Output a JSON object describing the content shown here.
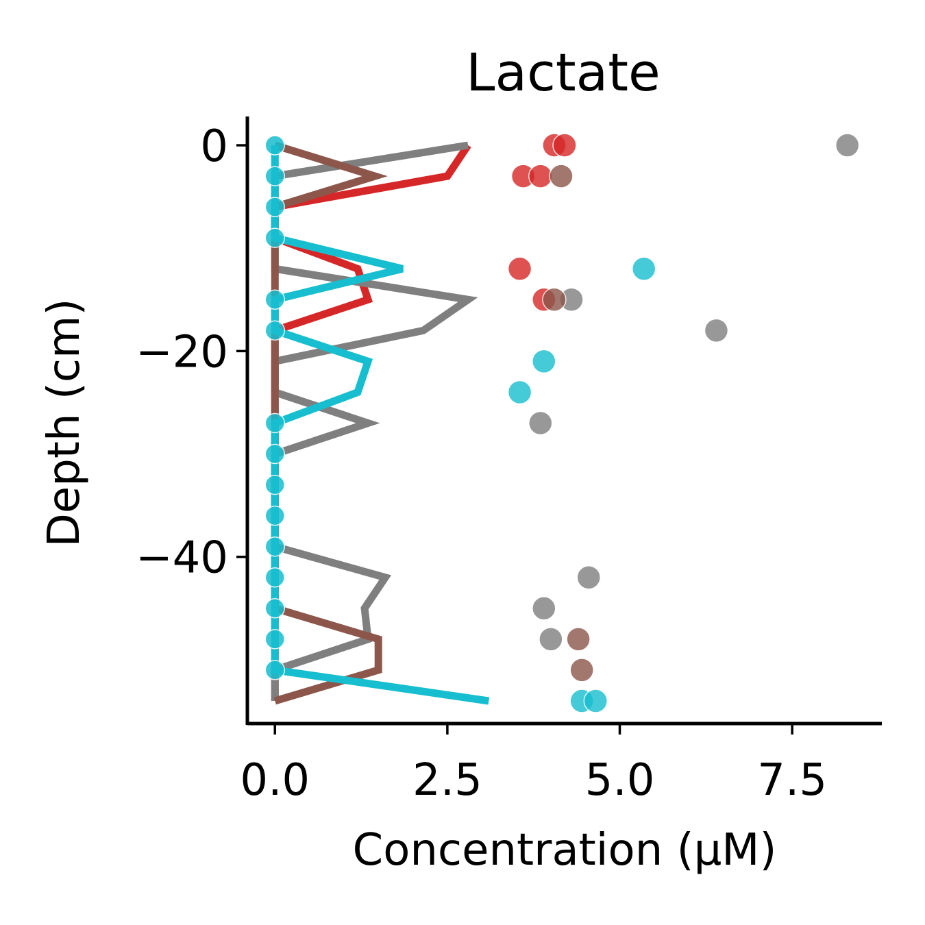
{
  "chart_data": {
    "type": "line",
    "title": "Lactate",
    "xlabel": "Concentration (μM)",
    "ylabel": "Depth (cm)",
    "xlim": [
      -0.4,
      8.8
    ],
    "ylim": [
      -56.2,
      2.8
    ],
    "xticks": [
      0.0,
      2.5,
      5.0,
      7.5
    ],
    "xtick_labels": [
      "0.0",
      "2.5",
      "5.0",
      "7.5"
    ],
    "yticks": [
      0,
      -20,
      -40
    ],
    "ytick_labels": [
      "0",
      "−20",
      "−40"
    ],
    "grid": false,
    "legend": "none",
    "depths": [
      0,
      -3,
      -6,
      -9,
      -12,
      -15,
      -18,
      -21,
      -24,
      -27,
      -30,
      -33,
      -36,
      -39,
      -42,
      -45,
      -48,
      -51,
      -54
    ],
    "series": [
      {
        "color": "#d62728",
        "line_x": [
          2.8,
          2.5,
          0.0,
          0.0,
          1.2,
          1.35,
          0.0,
          0.0,
          0.0,
          0.0,
          0.0,
          0.0,
          0.0,
          0.0,
          0.0,
          0.0,
          0.0,
          0.0,
          0.0
        ],
        "observations": [
          {
            "x": 4.05,
            "y": 0
          },
          {
            "x": 4.2,
            "y": 0
          },
          {
            "x": 3.6,
            "y": -3
          },
          {
            "x": 3.85,
            "y": -3
          },
          {
            "x": 3.55,
            "y": -12
          },
          {
            "x": 3.9,
            "y": -15
          }
        ]
      },
      {
        "color": "#7f7f7f",
        "line_x": [
          2.8,
          0.0,
          0.0,
          0.0,
          0.0,
          2.8,
          2.15,
          0.0,
          0.0,
          1.35,
          0.0,
          0.0,
          0.0,
          0.0,
          1.6,
          1.3,
          1.35,
          0.0,
          0.0
        ],
        "observations": [
          {
            "x": 8.3,
            "y": 0
          },
          {
            "x": 4.3,
            "y": -15
          },
          {
            "x": 6.4,
            "y": -18
          },
          {
            "x": 3.85,
            "y": -27
          },
          {
            "x": 4.55,
            "y": -42
          },
          {
            "x": 3.9,
            "y": -45
          },
          {
            "x": 4.0,
            "y": -48
          }
        ]
      },
      {
        "color": "#8c564b",
        "line_x": [
          0.0,
          1.45,
          0.0,
          0.0,
          0.0,
          0.0,
          0.0,
          0.0,
          0.0,
          0.0,
          0.0,
          0.0,
          0.0,
          0.0,
          0.0,
          0.0,
          1.5,
          1.5,
          0.0
        ],
        "observations": [
          {
            "x": 4.15,
            "y": -3
          },
          {
            "x": 4.05,
            "y": -15
          },
          {
            "x": 4.4,
            "y": -48
          },
          {
            "x": 4.45,
            "y": -51
          }
        ]
      },
      {
        "color": "#17becf",
        "line_x": [
          0.0,
          0.0,
          0.0,
          0.0,
          1.85,
          0.0,
          0.0,
          1.35,
          1.2,
          0.0,
          0.0,
          0.0,
          0.0,
          0.0,
          0.0,
          0.0,
          0.0,
          0.0,
          3.1
        ],
        "observations": [
          {
            "x": 5.35,
            "y": -12
          },
          {
            "x": 3.9,
            "y": -21
          },
          {
            "x": 3.55,
            "y": -24
          },
          {
            "x": 4.45,
            "y": -54
          },
          {
            "x": 4.65,
            "y": -54
          }
        ]
      }
    ]
  }
}
